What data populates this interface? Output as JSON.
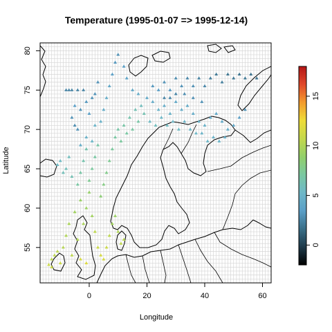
{
  "chart_data": {
    "type": "scatter",
    "title": "Temperature (1995-01-07 => 1995-12-14)",
    "xlabel": "Longitude",
    "ylabel": "Latitude",
    "xlim": [
      -17,
      63
    ],
    "ylim": [
      50.5,
      81
    ],
    "x_ticks": [
      0,
      20,
      40,
      60
    ],
    "y_ticks": [
      55,
      60,
      65,
      70,
      75,
      80
    ],
    "grid": true,
    "colorbar": {
      "min": -2,
      "max": 18,
      "ticks": [
        0,
        5,
        10,
        15
      ],
      "colors": [
        "#000000",
        "#1e3a4a",
        "#3a6f88",
        "#5b9fc7",
        "#6fb8c8",
        "#7ac8a0",
        "#92cf6a",
        "#c4d84c",
        "#eedc38",
        "#f39b2c",
        "#e0482a",
        "#b31515"
      ]
    },
    "series": [
      {
        "points": [
          [
            -13,
            53.5,
            10.5
          ],
          [
            -12,
            54,
            10.5
          ],
          [
            -10,
            53,
            11
          ],
          [
            -9,
            55,
            10.2
          ],
          [
            -8,
            56.5,
            10
          ],
          [
            -7,
            58,
            9.8
          ],
          [
            -6,
            54,
            10.5
          ],
          [
            -5,
            59.5,
            9.5
          ],
          [
            -4,
            56,
            10
          ],
          [
            -3,
            61,
            9.2
          ],
          [
            -2,
            58,
            9.8
          ],
          [
            -1,
            60,
            9.3
          ],
          [
            0,
            62,
            9
          ],
          [
            1,
            59,
            9.5
          ],
          [
            2,
            57,
            10.5
          ],
          [
            3,
            55,
            11
          ],
          [
            4,
            54,
            11.5
          ],
          [
            5,
            53.5,
            11.5
          ],
          [
            6,
            55,
            11
          ],
          [
            7,
            56.5,
            10.5
          ],
          [
            8,
            58,
            9.5
          ],
          [
            9,
            59,
            9.2
          ],
          [
            10,
            57,
            10
          ],
          [
            11,
            55.5,
            10.5
          ],
          [
            12,
            56,
            10.3
          ],
          [
            -14,
            52.8,
            11
          ],
          [
            -13,
            52.5,
            11
          ],
          [
            -11,
            54.5,
            10.5
          ],
          [
            -3,
            53.5,
            11.5
          ],
          [
            -1,
            53,
            11.8
          ]
        ]
      },
      {
        "points": [
          [
            -11,
            65.5,
            5.5
          ],
          [
            -10,
            66,
            5.5
          ],
          [
            -9,
            64.5,
            6
          ],
          [
            -8,
            65,
            6
          ],
          [
            -7,
            66.5,
            5.8
          ],
          [
            -6,
            64,
            6.2
          ],
          [
            -4,
            63,
            7
          ],
          [
            -3,
            64.5,
            6.8
          ],
          [
            -2,
            66,
            6.5
          ],
          [
            -1,
            67.5,
            6.5
          ],
          [
            0,
            63.5,
            7.5
          ],
          [
            1,
            65,
            7.2
          ],
          [
            2,
            66.5,
            7
          ],
          [
            3,
            68,
            6.8
          ],
          [
            4,
            61.5,
            8.5
          ],
          [
            5,
            63,
            8
          ],
          [
            6,
            64.5,
            7.8
          ],
          [
            7,
            66,
            7.5
          ],
          [
            8,
            67.5,
            7.2
          ],
          [
            9,
            69,
            7
          ],
          [
            10,
            70,
            6.8
          ],
          [
            11,
            68.5,
            7.2
          ],
          [
            12,
            70.5,
            6.8
          ],
          [
            13,
            69.5,
            7
          ],
          [
            14,
            71.5,
            6.5
          ],
          [
            15,
            70,
            7
          ],
          [
            16,
            72.5,
            6.2
          ],
          [
            17,
            71,
            6.8
          ],
          [
            18,
            73,
            5.8
          ],
          [
            19,
            72,
            6.3
          ]
        ]
      },
      {
        "points": [
          [
            -5,
            73,
            3.5
          ],
          [
            -3,
            72.5,
            3
          ],
          [
            -1,
            73.5,
            3.2
          ],
          [
            0,
            72,
            3.5
          ],
          [
            -6,
            71.5,
            3
          ],
          [
            -3,
            68,
            4.5
          ],
          [
            -1,
            69,
            4.8
          ],
          [
            1,
            68.5,
            5.2
          ],
          [
            2,
            70.5,
            5
          ],
          [
            4,
            71,
            4.8
          ],
          [
            5,
            72.5,
            4.5
          ],
          [
            6,
            74,
            4.5
          ],
          [
            7,
            75.5,
            4
          ],
          [
            8,
            77,
            3.5
          ],
          [
            9,
            78.5,
            3.2
          ],
          [
            10,
            79.5,
            3
          ],
          [
            12,
            78,
            3.5
          ],
          [
            13,
            76.5,
            3.8
          ],
          [
            15,
            75,
            4.2
          ],
          [
            17,
            74.5,
            4.5
          ],
          [
            -8,
            75,
            2.5
          ],
          [
            -7,
            75,
            2.5
          ],
          [
            -6,
            75,
            2.5
          ],
          [
            -4,
            75,
            2.5
          ],
          [
            -2,
            75,
            2.5
          ],
          [
            1,
            74,
            3
          ],
          [
            2,
            74.5,
            3
          ],
          [
            3,
            76,
            3
          ],
          [
            -5,
            70.5,
            2.8
          ],
          [
            -4,
            70,
            3
          ]
        ]
      },
      {
        "points": [
          [
            20,
            74,
            4.2
          ],
          [
            22,
            73.5,
            4.5
          ],
          [
            24,
            72.5,
            5
          ],
          [
            26,
            73,
            4.5
          ],
          [
            28,
            72,
            4.8
          ],
          [
            30,
            73.5,
            4.2
          ],
          [
            32,
            72.5,
            4.5
          ],
          [
            34,
            73,
            4.3
          ],
          [
            36,
            72,
            4.5
          ],
          [
            38,
            71,
            4.8
          ],
          [
            40,
            70.5,
            4.8
          ],
          [
            42,
            71.5,
            4.3
          ],
          [
            44,
            72,
            4
          ],
          [
            46,
            71,
            4.2
          ],
          [
            48,
            70,
            4.5
          ],
          [
            50,
            70.5,
            4
          ],
          [
            52,
            71.5,
            3.5
          ],
          [
            54,
            72.5,
            3
          ],
          [
            21,
            71,
            5.5
          ],
          [
            23,
            70.5,
            5.8
          ],
          [
            25,
            71.5,
            5.3
          ],
          [
            27,
            70.5,
            5.6
          ],
          [
            29,
            71,
            5.3
          ],
          [
            31,
            70,
            5.5
          ],
          [
            33,
            71,
            5
          ],
          [
            35,
            70,
            5.2
          ],
          [
            37,
            69.5,
            5.3
          ],
          [
            39,
            69.5,
            5
          ],
          [
            41,
            68.5,
            5.2
          ],
          [
            43,
            69,
            4.8
          ],
          [
            45,
            68.5,
            5
          ],
          [
            47,
            69,
            4.6
          ]
        ]
      },
      {
        "points": [
          [
            22,
            75.5,
            3.2
          ],
          [
            24,
            75,
            3.5
          ],
          [
            26,
            76,
            3
          ],
          [
            28,
            75,
            3.3
          ],
          [
            30,
            76.5,
            2.8
          ],
          [
            32,
            75.5,
            3
          ],
          [
            34,
            76.5,
            2.6
          ],
          [
            36,
            75.5,
            2.9
          ],
          [
            38,
            76.5,
            2.4
          ],
          [
            40,
            75.5,
            2.6
          ],
          [
            42,
            76.5,
            2.2
          ],
          [
            44,
            77,
            2
          ],
          [
            46,
            76,
            2.3
          ],
          [
            48,
            77,
            1.9
          ],
          [
            50,
            76.5,
            2
          ],
          [
            52,
            77,
            1.8
          ],
          [
            54,
            76.5,
            2
          ],
          [
            56,
            77,
            1.8
          ],
          [
            58,
            76.5,
            1.9
          ],
          [
            26,
            74,
            2.5
          ],
          [
            28,
            74,
            2.6
          ],
          [
            30,
            74.5,
            2.5
          ],
          [
            33,
            74.5,
            2.8
          ],
          [
            36,
            74,
            2.9
          ],
          [
            39,
            73.5,
            3
          ]
        ]
      }
    ]
  }
}
